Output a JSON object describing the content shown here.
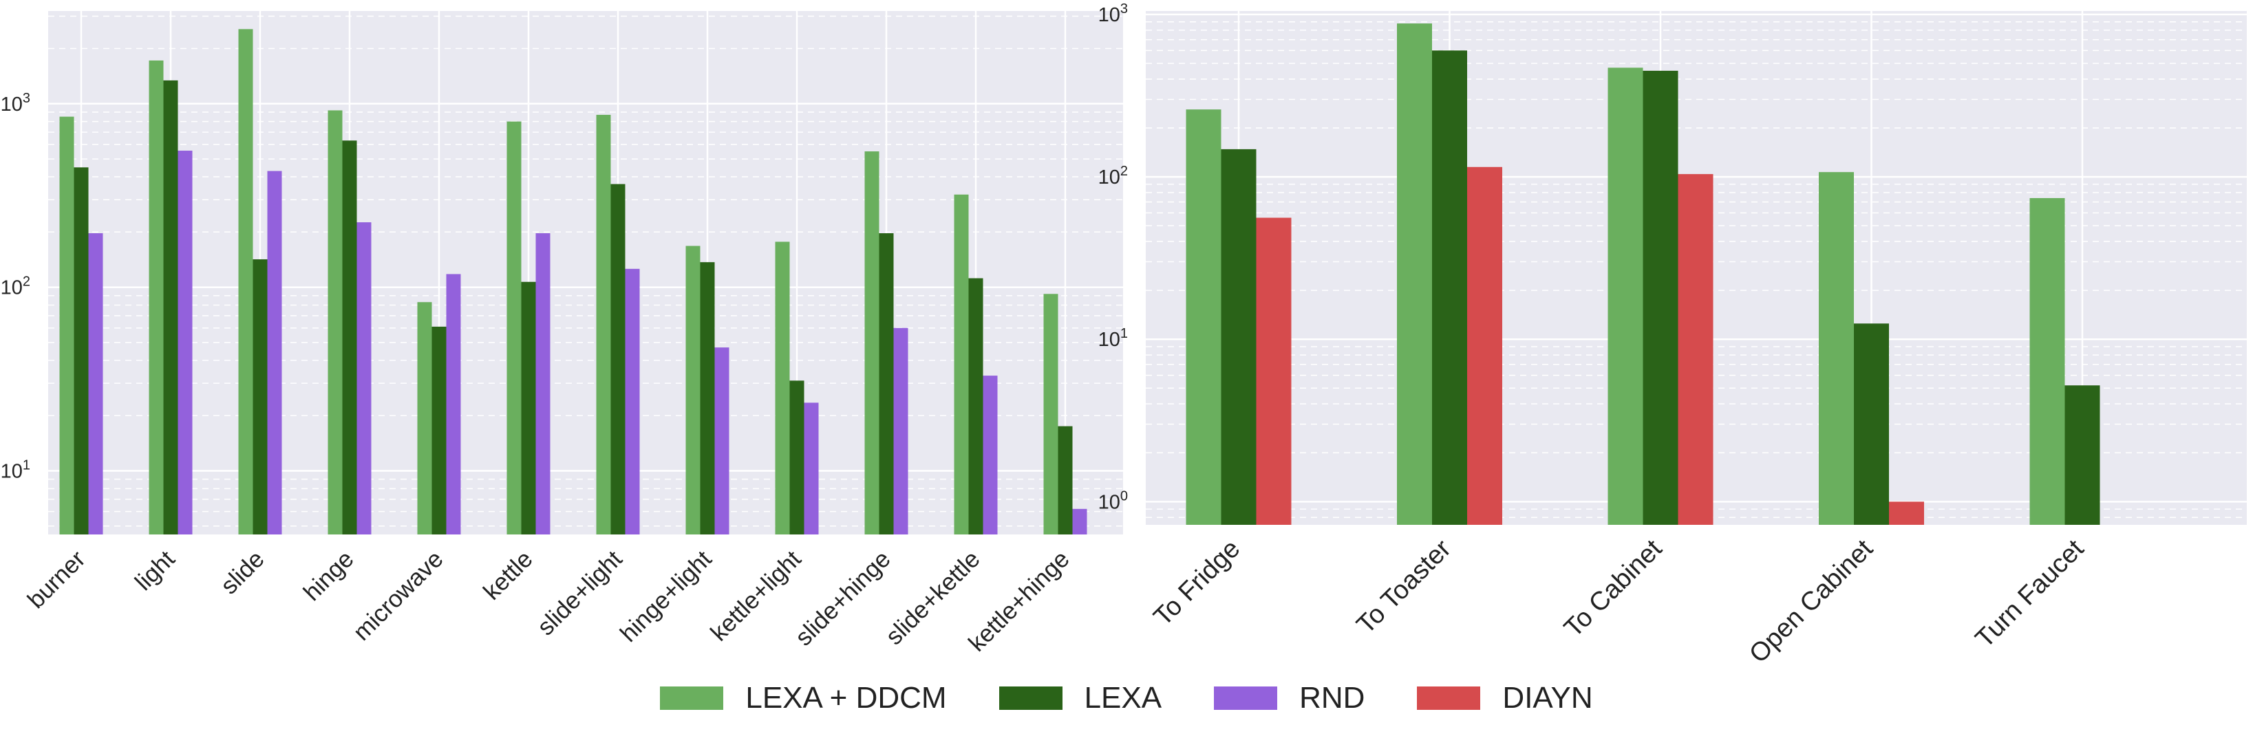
{
  "chart_data": [
    {
      "type": "bar",
      "yscale": "log",
      "ylim": [
        4.5,
        3200
      ],
      "y_ticks": [
        {
          "value": 10,
          "base": "10",
          "exp": "1"
        },
        {
          "value": 100,
          "base": "10",
          "exp": "2"
        },
        {
          "value": 1000,
          "base": "10",
          "exp": "3"
        }
      ],
      "grid": true,
      "categories": [
        "burner",
        "light",
        "slide",
        "hinge",
        "microwave",
        "kettle",
        "slide+light",
        "hinge+light",
        "kettle+light",
        "slide+hinge",
        "slide+kettle",
        "kettle+hinge"
      ],
      "series": [
        {
          "name": "LEXA + DDCM",
          "color": "#6aaf5e",
          "values": [
            850,
            1720,
            2550,
            920,
            83,
            800,
            870,
            168,
            177,
            550,
            320,
            92
          ]
        },
        {
          "name": "LEXA",
          "color": "#2a6318",
          "values": [
            450,
            1340,
            142,
            630,
            61,
            107,
            365,
            137,
            31,
            197,
            112,
            17.5
          ]
        },
        {
          "name": "RND",
          "color": "#9361dc",
          "values": [
            197,
            555,
            430,
            226,
            118,
            197,
            126,
            47,
            23.5,
            60,
            33,
            6.2
          ]
        }
      ]
    },
    {
      "type": "bar",
      "yscale": "log",
      "ylim": [
        0.72,
        1050
      ],
      "y_ticks": [
        {
          "value": 1,
          "base": "10",
          "exp": "0"
        },
        {
          "value": 10,
          "base": "10",
          "exp": "1"
        },
        {
          "value": 100,
          "base": "10",
          "exp": "2"
        },
        {
          "value": 1000,
          "base": "10",
          "exp": "3"
        }
      ],
      "grid": true,
      "categories": [
        "To Fridge",
        "To Toaster",
        "To Cabinet",
        "Open Cabinet",
        "Turn Faucet"
      ],
      "series": [
        {
          "name": "LEXA + DDCM",
          "color": "#6aaf5e",
          "values": [
            260,
            880,
            470,
            107,
            74
          ]
        },
        {
          "name": "LEXA",
          "color": "#2a6318",
          "values": [
            148,
            600,
            450,
            12.5,
            5.2
          ]
        },
        {
          "name": "DIAYN",
          "color": "#d64b4d",
          "values": [
            56,
            115,
            104,
            1,
            null
          ]
        }
      ]
    }
  ],
  "legend": {
    "placement": "bottom-center",
    "items": [
      {
        "label": "LEXA + DDCM",
        "color": "#6aaf5e"
      },
      {
        "label": "LEXA",
        "color": "#2a6318"
      },
      {
        "label": "RND",
        "color": "#9361dc"
      },
      {
        "label": "DIAYN",
        "color": "#d64b4d"
      }
    ]
  },
  "style": {
    "plot_background": "#e9e9f1",
    "grid_color": "#ffffff"
  }
}
